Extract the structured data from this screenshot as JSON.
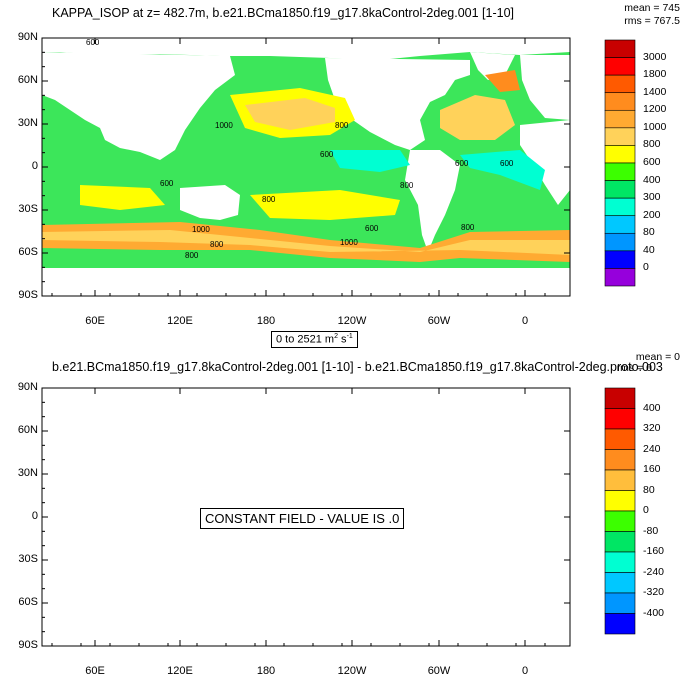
{
  "panel1": {
    "title": "KAPPA_ISOP at z= 482.7m, b.e21.BCma1850.f19_g17.8kaControl-2deg.001 [1-10]",
    "mean": "mean = 745",
    "rms": "rms = 767.5",
    "range_text": "0 to 2521 m",
    "range_exp1": "2",
    "range_mid": " s",
    "range_exp2": "-1",
    "colorbar_labels": [
      "3000",
      "1800",
      "1400",
      "1200",
      "1000",
      "800",
      "600",
      "400",
      "300",
      "200",
      "80",
      "40",
      "0"
    ],
    "contour_labels": [
      "600",
      "1000",
      "800",
      "600",
      "800",
      "600",
      "800",
      "1000",
      "800",
      "1000",
      "600",
      "800",
      "800",
      "600",
      "600"
    ]
  },
  "panel2": {
    "title": "b.e21.BCma1850.f19_g17.8kaControl-2deg.001 [1-10] - b.e21.BCma1850.f19_g17.8kaControl-2deg.proto.003",
    "mean": "mean = 0",
    "rms": "rms = 0",
    "message": "CONSTANT FIELD - VALUE IS .0",
    "colorbar_labels": [
      "400",
      "320",
      "240",
      "160",
      "80",
      "0",
      "-80",
      "-160",
      "-240",
      "-320",
      "-400"
    ]
  },
  "axes": {
    "lat_labels": [
      "90N",
      "60N",
      "30N",
      "0",
      "30S",
      "60S",
      "90S"
    ],
    "lon_labels": [
      "60E",
      "120E",
      "180",
      "120W",
      "60W",
      "0"
    ]
  },
  "colors": {
    "panel1": [
      "#c80000",
      "#ff0000",
      "#ff5a00",
      "#ff8c1e",
      "#ffaa32",
      "#ffd25a",
      "#ffff00",
      "#3cff00",
      "#00e664",
      "#00ffd2",
      "#00c8ff",
      "#0096ff",
      "#0000ff",
      "#9600dc",
      "#dc00dc",
      "#c8c8c8",
      "#6e6e6e"
    ],
    "panel2": [
      "#c80000",
      "#ff0000",
      "#ff5a00",
      "#ff8c1e",
      "#ffbe3c",
      "#ffff00",
      "#3cff00",
      "#00e664",
      "#00ffd2",
      "#00c8ff",
      "#0096ff",
      "#0000ff",
      "#9600dc",
      "#dc00dc",
      "#c8c8c8",
      "#6e6e6e"
    ],
    "ocean_base": "#3ce65a",
    "land": "#ffffff"
  }
}
